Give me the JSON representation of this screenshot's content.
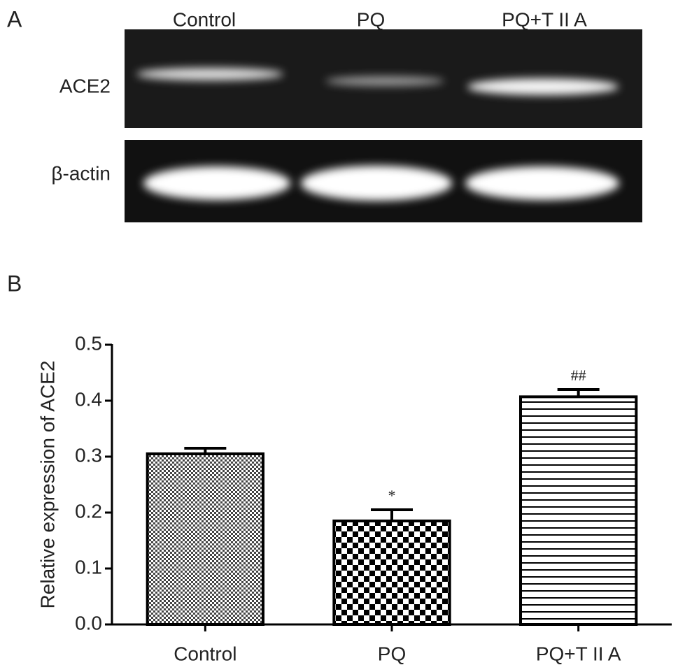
{
  "panel_a": {
    "label": "A",
    "lanes": [
      "Control",
      "PQ",
      "PQ+T II A"
    ],
    "rows": [
      "ACE2",
      "β-actin"
    ]
  },
  "chart_data": {
    "type": "bar",
    "panel_label": "B",
    "ylabel": "Relative expression of ACE2",
    "categories": [
      "Control",
      "PQ",
      "PQ+T II A"
    ],
    "values": [
      0.305,
      0.185,
      0.407
    ],
    "errors": [
      0.01,
      0.02,
      0.013
    ],
    "significance": [
      null,
      "*",
      "##"
    ],
    "color": "#000000",
    "ylim": [
      0,
      0.5
    ],
    "yticks": [
      {
        "value": 0,
        "label": "0.0"
      },
      0.1,
      0.2,
      0.3,
      0.4,
      0.5
    ]
  }
}
